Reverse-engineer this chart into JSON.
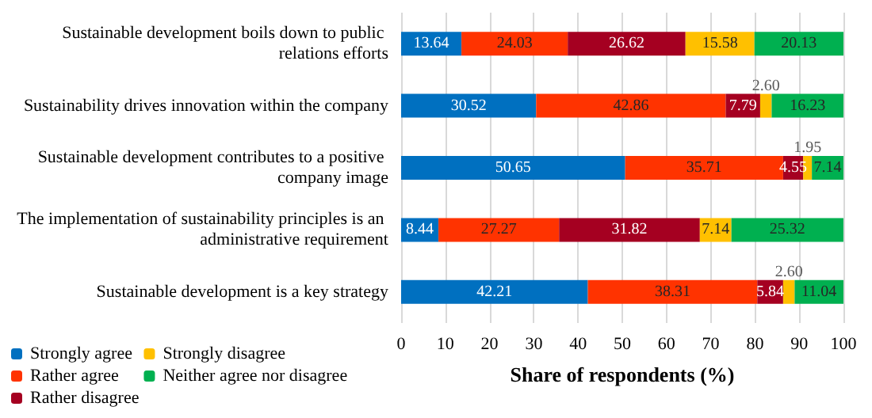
{
  "chart_data": {
    "type": "bar",
    "orientation": "horizontal",
    "stacked": true,
    "xlabel": "Share of respondents (%)",
    "categories": [
      "Sustainable development boils down to public relations efforts",
      "Sustainability drives innovation within the company",
      "Sustainable development contributes to a positive company image",
      "The implementation of sustainability principles is an administrative requirement",
      "Sustainable development is a key strategy"
    ],
    "series": [
      {
        "name": "Strongly agree",
        "color": "#0070c0",
        "values": [
          13.64,
          30.52,
          50.65,
          8.44,
          42.21
        ],
        "value_labels": [
          "13.64",
          "30.52",
          "50.65",
          "8.44",
          "42.21"
        ]
      },
      {
        "name": "Rather agree",
        "color": "#ff3300",
        "values": [
          24.03,
          42.86,
          35.71,
          27.27,
          38.31
        ],
        "value_labels": [
          "24.03",
          "42.86",
          "35.71",
          "27.27",
          "38.31"
        ]
      },
      {
        "name": "Rather disagree",
        "color": "#a50021",
        "values": [
          26.62,
          7.79,
          4.55,
          31.82,
          5.84
        ],
        "value_labels": [
          "26.62",
          "7.79",
          "4.55",
          "31.82",
          "5.84"
        ]
      },
      {
        "name": "Strongly disagree",
        "color": "#ffc000",
        "values": [
          15.58,
          2.6,
          1.95,
          7.14,
          2.6
        ],
        "value_labels": [
          "15.58",
          "2.60",
          "1.95",
          "7.14",
          "2.60"
        ]
      },
      {
        "name": "Neither agree nor disagree",
        "color": "#00b050",
        "values": [
          20.13,
          16.23,
          7.14,
          25.32,
          11.04
        ],
        "value_labels": [
          "20.13",
          "16.23",
          "7.14",
          "25.32",
          "11.04"
        ]
      }
    ],
    "xlim": [
      0,
      100
    ],
    "xticks": [
      0,
      10,
      20,
      30,
      40,
      50,
      60,
      70,
      80,
      90,
      100
    ],
    "grid": "x",
    "legend": "bottom left"
  }
}
